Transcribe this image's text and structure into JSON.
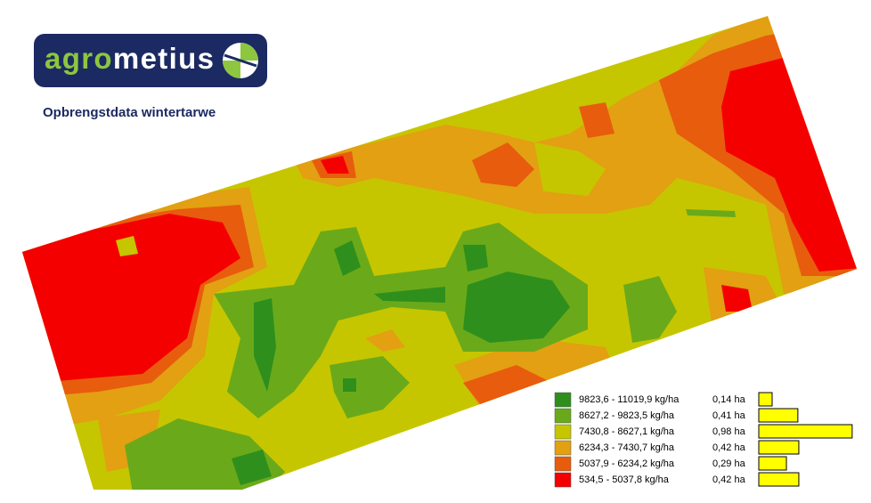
{
  "header": {
    "logo": [
      "agro",
      "metius"
    ],
    "subtitle": "Opbrengstdata wintertarwe"
  },
  "legend": {
    "items": [
      {
        "range": "9823,6 - 11019,9 kg/ha",
        "color": "#2f8f1c",
        "area": 0.14,
        "area_label": "0,14 ha"
      },
      {
        "range": "8627,2 - 9823,5 kg/ha",
        "color": "#6aaa1a",
        "area": 0.41,
        "area_label": "0,41 ha"
      },
      {
        "range": "7430,8 - 8627,1 kg/ha",
        "color": "#c6c600",
        "area": 0.98,
        "area_label": "0,98 ha"
      },
      {
        "range": "6234,3 - 7430,7 kg/ha",
        "color": "#e2a012",
        "area": 0.42,
        "area_label": "0,42 ha"
      },
      {
        "range": "5037,9 - 6234,2 kg/ha",
        "color": "#e85c0e",
        "area": 0.29,
        "area_label": "0,29 ha"
      },
      {
        "range": "534,5 - 5037,8 kg/ha",
        "color": "#f50000",
        "area": 0.42,
        "area_label": "0,42 ha"
      }
    ]
  }
}
